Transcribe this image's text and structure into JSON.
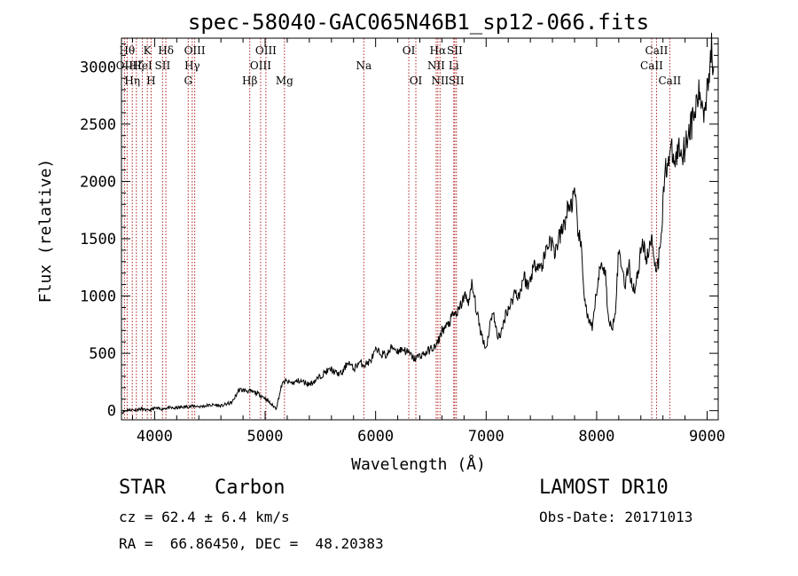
{
  "chart_data": {
    "type": "line",
    "title": "spec-58040-GAC065N46B1_sp12-066.fits",
    "xlabel": "Wavelength (Å)",
    "ylabel": "Flux (relative)",
    "xlim": [
      3700,
      9100
    ],
    "ylim": [
      -80,
      3250
    ],
    "x_ticks": [
      4000,
      5000,
      6000,
      7000,
      8000,
      9000
    ],
    "x_tick_labels": [
      "4000",
      "5000",
      "6000",
      "7000",
      "8000",
      "9000"
    ],
    "y_ticks": [
      0,
      500,
      1000,
      1500,
      2000,
      2500,
      3000
    ],
    "y_tick_labels": [
      "0",
      "500",
      "1000",
      "1500",
      "2000",
      "2500",
      "3000"
    ],
    "grid": false,
    "line_color": "#000000",
    "marker_color": "#b22222",
    "series": [
      {
        "x": [
          3700,
          3760,
          3820,
          3880,
          3940,
          4000,
          4060,
          4120,
          4180,
          4240,
          4300,
          4360,
          4420,
          4480,
          4540,
          4600,
          4660,
          4700,
          4740,
          4760,
          4800,
          4850,
          4900,
          4950,
          5000,
          5050,
          5100,
          5150,
          5180,
          5200,
          5250,
          5300,
          5350,
          5400,
          5450,
          5500,
          5550,
          5600,
          5650,
          5700,
          5750,
          5800,
          5850,
          5900,
          5950,
          6000,
          6050,
          6100,
          6150,
          6200,
          6250,
          6300,
          6350,
          6400,
          6450,
          6500,
          6550,
          6600,
          6650,
          6700,
          6750,
          6800,
          6850,
          6870,
          6900,
          6930,
          6960,
          7000,
          7030,
          7060,
          7100,
          7140,
          7180,
          7220,
          7260,
          7300,
          7340,
          7380,
          7420,
          7460,
          7500,
          7540,
          7580,
          7620,
          7660,
          7700,
          7740,
          7780,
          7800,
          7830,
          7860,
          7890,
          7910,
          7930,
          7960,
          8000,
          8020,
          8050,
          8080,
          8110,
          8140,
          8170,
          8200,
          8230,
          8260,
          8290,
          8320,
          8350,
          8380,
          8410,
          8440,
          8470,
          8500,
          8530,
          8560,
          8590,
          8620,
          8650,
          8680,
          8710,
          8740,
          8770,
          8800,
          8830,
          8860,
          8890,
          8920,
          8950,
          8980,
          9000,
          9020,
          9040,
          9060
        ],
        "y": [
          -20,
          10,
          5,
          15,
          0,
          20,
          15,
          25,
          20,
          30,
          35,
          40,
          35,
          45,
          50,
          40,
          60,
          70,
          140,
          180,
          180,
          170,
          160,
          140,
          110,
          60,
          20,
          220,
          260,
          250,
          240,
          260,
          250,
          230,
          260,
          300,
          340,
          360,
          320,
          330,
          430,
          360,
          420,
          400,
          430,
          520,
          500,
          480,
          560,
          520,
          540,
          500,
          450,
          480,
          500,
          540,
          560,
          700,
          740,
          830,
          860,
          1000,
          960,
          1100,
          950,
          780,
          660,
          540,
          720,
          880,
          650,
          680,
          860,
          920,
          1040,
          1000,
          1180,
          1080,
          1230,
          1300,
          1240,
          1400,
          1500,
          1380,
          1500,
          1600,
          1760,
          1820,
          1880,
          1600,
          1400,
          1000,
          850,
          780,
          700,
          1050,
          1180,
          1300,
          1180,
          760,
          720,
          900,
          1400,
          1250,
          1100,
          1280,
          1100,
          1060,
          1250,
          1500,
          1350,
          1350,
          1550,
          1250,
          1300,
          1650,
          2100,
          2200,
          2250,
          2150,
          2300,
          2250,
          2300,
          2450,
          2500,
          2600,
          2750,
          2700,
          2600,
          2900,
          2950,
          3150,
          3000
        ]
      }
    ],
    "line_markers": [
      {
        "x": 3751,
        "label": "Hθ",
        "row": 0
      },
      {
        "x": 3727,
        "label": "OII",
        "row": 1
      },
      {
        "x": 3798,
        "label": "Hη",
        "row": 2
      },
      {
        "x": 3835,
        "label": "Hζ",
        "row": 1
      },
      {
        "x": 3889,
        "label": "HeI",
        "row": 1
      },
      {
        "x": 3934,
        "label": "K",
        "row": 0
      },
      {
        "x": 3968,
        "label": "H",
        "row": 2
      },
      {
        "x": 4072,
        "label": "SII",
        "row": 1
      },
      {
        "x": 4102,
        "label": "Hδ",
        "row": 0
      },
      {
        "x": 4304,
        "label": "G",
        "row": 2
      },
      {
        "x": 4340,
        "label": "Hγ",
        "row": 1
      },
      {
        "x": 4363,
        "label": "OIII",
        "row": 0
      },
      {
        "x": 4861,
        "label": "Hβ",
        "row": 2
      },
      {
        "x": 4959,
        "label": "OIII",
        "row": 1
      },
      {
        "x": 5007,
        "label": "OIII",
        "row": 0
      },
      {
        "x": 5175,
        "label": "Mg",
        "row": 2
      },
      {
        "x": 5893,
        "label": "Na",
        "row": 1
      },
      {
        "x": 6300,
        "label": "OI",
        "row": 0
      },
      {
        "x": 6364,
        "label": "OI",
        "row": 2
      },
      {
        "x": 6548,
        "label": "NII",
        "row": 1
      },
      {
        "x": 6563,
        "label": "Hα",
        "row": 0
      },
      {
        "x": 6583,
        "label": "NII",
        "row": 2
      },
      {
        "x": 6707,
        "label": "Li",
        "row": 1
      },
      {
        "x": 6716,
        "label": "SII",
        "row": 0
      },
      {
        "x": 6731,
        "label": "SII",
        "row": 2
      },
      {
        "x": 8498,
        "label": "CaII",
        "row": 1
      },
      {
        "x": 8542,
        "label": "CaII",
        "row": 0
      },
      {
        "x": 8662,
        "label": "CaII",
        "row": 2
      }
    ]
  },
  "info": {
    "object_class": "STAR",
    "subclass": "Carbon",
    "survey": "LAMOST DR10",
    "velocity": "cz = 62.4 ± 6.4 km/s",
    "obs_date": "Obs-Date: 20171013",
    "coords": "RA =  66.86450, DEC =  48.20383"
  }
}
